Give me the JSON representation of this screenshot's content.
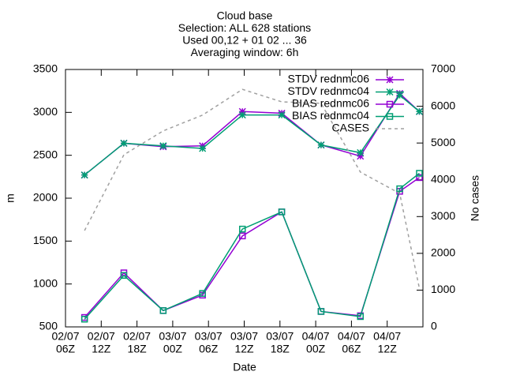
{
  "chart_data": {
    "type": "line",
    "title": [
      "Cloud base",
      "Selection: ALL    628 stations",
      "Used 00,12 + 01 02 ... 36",
      "Averaging window:  6h"
    ],
    "x_label": "Date",
    "y_label": "m",
    "y2_label": "No cases",
    "x": [
      3.2,
      9.8,
      16.4,
      23.0,
      29.7,
      36.3,
      42.9,
      49.5,
      56.1,
      59.4
    ],
    "xlim": [
      0,
      60
    ],
    "xticks": [
      {
        "value": 0,
        "label": [
          "02/07",
          "06Z"
        ]
      },
      {
        "value": 6,
        "label": [
          "02/07",
          "12Z"
        ]
      },
      {
        "value": 12,
        "label": [
          "02/07",
          "18Z"
        ]
      },
      {
        "value": 18,
        "label": [
          "03/07",
          "00Z"
        ]
      },
      {
        "value": 24,
        "label": [
          "03/07",
          "06Z"
        ]
      },
      {
        "value": 30,
        "label": [
          "03/07",
          "12Z"
        ]
      },
      {
        "value": 36,
        "label": [
          "03/07",
          "18Z"
        ]
      },
      {
        "value": 42,
        "label": [
          "04/07",
          "00Z"
        ]
      },
      {
        "value": 48,
        "label": [
          "04/07",
          "06Z"
        ]
      },
      {
        "value": 54,
        "label": [
          "04/07",
          "12Z"
        ]
      }
    ],
    "ylim": [
      500,
      3500
    ],
    "yticks": [
      500,
      1000,
      1500,
      2000,
      2500,
      3000,
      3500
    ],
    "y2lim": [
      0,
      7000
    ],
    "y2ticks": [
      0,
      1000,
      2000,
      3000,
      4000,
      5000,
      6000,
      7000
    ],
    "legend": "upper right",
    "series": [
      {
        "name": "STDV rednmc06",
        "color": "#9400d3",
        "marker": "star",
        "values": [
          2270,
          2640,
          2600,
          2610,
          3010,
          2990,
          2620,
          2490,
          3220,
          3010
        ]
      },
      {
        "name": "STDV rednmc04",
        "color": "#009e73",
        "marker": "star",
        "values": [
          2270,
          2640,
          2610,
          2580,
          2970,
          2970,
          2620,
          2530,
          3200,
          3010
        ]
      },
      {
        "name": "BIAS rednmc06",
        "color": "#9400d3",
        "marker": "square",
        "values": [
          610,
          1130,
          690,
          870,
          1560,
          1840,
          680,
          630,
          2080,
          2240
        ]
      },
      {
        "name": "BIAS rednmc04",
        "color": "#009e73",
        "marker": "square",
        "values": [
          590,
          1100,
          690,
          890,
          1640,
          1840,
          680,
          620,
          2110,
          2290
        ]
      },
      {
        "name": "CASES",
        "color": "#a0a0a0",
        "marker": "none",
        "dashed": true,
        "axis": "y2",
        "values": [
          2620,
          4680,
          5330,
          5760,
          6460,
          6120,
          6080,
          4210,
          3630,
          1050
        ]
      }
    ]
  }
}
